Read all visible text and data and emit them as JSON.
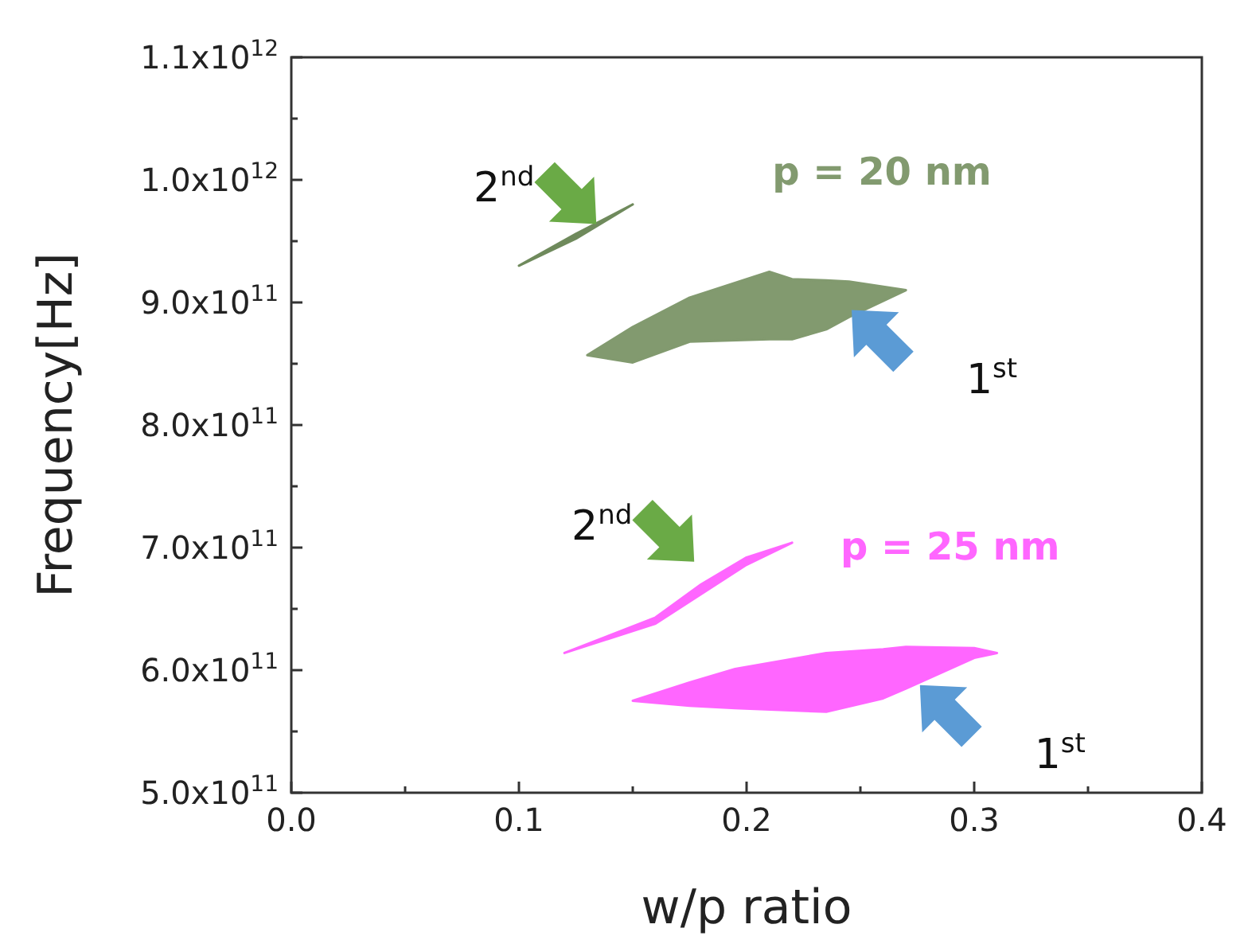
{
  "chart_data": {
    "type": "area",
    "xlabel": "w/p ratio",
    "ylabel": "Frequency[Hz]",
    "xlim": [
      0,
      0.4
    ],
    "ylim": [
      500000000000.0,
      1100000000000.0
    ],
    "xticks": [
      {
        "value": 0,
        "label": "0.0"
      },
      {
        "value": 0.05,
        "label": null
      },
      {
        "value": 0.1,
        "label": "0.1"
      },
      {
        "value": 0.15,
        "label": null
      },
      {
        "value": 0.2,
        "label": "0.2"
      },
      {
        "value": 0.25,
        "label": null
      },
      {
        "value": 0.3,
        "label": "0.3"
      },
      {
        "value": 0.35,
        "label": null
      },
      {
        "value": 0.4,
        "label": "0.4"
      }
    ],
    "yticks": [
      {
        "value": 500000000000.0,
        "label": "5.0x10$^{11}$"
      },
      {
        "value": 550000000000.0,
        "label": null
      },
      {
        "value": 600000000000.0,
        "label": "6.0x10$^{11}$"
      },
      {
        "value": 650000000000.0,
        "label": null
      },
      {
        "value": 700000000000.0,
        "label": "7.0x10$^{11}$"
      },
      {
        "value": 750000000000.0,
        "label": null
      },
      {
        "value": 800000000000.0,
        "label": "8.0x10$^{11}$"
      },
      {
        "value": 850000000000.0,
        "label": null
      },
      {
        "value": 900000000000.0,
        "label": "9.0x10$^{11}$"
      },
      {
        "value": 950000000000.0,
        "label": null
      },
      {
        "value": 1000000000000.0,
        "label": "1.0x10$^{12}$"
      },
      {
        "value": 1050000000000.0,
        "label": null
      },
      {
        "value": 1100000000000.0,
        "label": "1.1x10$^{12}$"
      }
    ],
    "series": [
      {
        "name": "p = 20 nm",
        "color": "#829a6f",
        "x": [
          0.13,
          0.15,
          0.175,
          0.21,
          0.22,
          0.235,
          0.245,
          0.27,
          0.245,
          0.235,
          0.22,
          0.21,
          0.175,
          0.15
        ],
        "values": [
          857000000000.0,
          880000000000.0,
          904000000000.0,
          925000000000.0,
          919000000000.0,
          918000000000.0,
          917000000000.0,
          910000000000.0,
          888000000000.0,
          878000000000.0,
          870000000000.0,
          870000000000.0,
          868000000000.0,
          851000000000.0
        ]
      },
      {
        "color": "#6f8a5c",
        "x": [
          0.1,
          0.125,
          0.15,
          0.125
        ],
        "values": [
          930000000000.0,
          956000000000.0,
          980000000000.0,
          952000000000.0
        ]
      },
      {
        "name": "p = 25 nm",
        "color": "#ff66ff",
        "x": [
          0.15,
          0.175,
          0.195,
          0.235,
          0.26,
          0.27,
          0.3,
          0.31,
          0.3,
          0.27,
          0.26,
          0.235,
          0.195,
          0.175
        ],
        "values": [
          575000000000.0,
          590000000000.0,
          601000000000.0,
          614000000000.0,
          617000000000.0,
          619000000000.0,
          618000000000.0,
          614000000000.0,
          610000000000.0,
          585000000000.0,
          577000000000.0,
          566000000000.0,
          569000000000.0,
          571000000000.0
        ]
      },
      {
        "color": "#ff66ff",
        "x": [
          0.12,
          0.16,
          0.18,
          0.2,
          0.22,
          0.2,
          0.18,
          0.16
        ],
        "values": [
          614000000000.0,
          643000000000.0,
          670000000000.0,
          692000000000.0,
          704000000000.0,
          686000000000.0,
          662000000000.0,
          638000000000.0
        ]
      }
    ],
    "annotations": [
      "1$^{st}$",
      {
        "text": "2$^{nd}$",
        "x": 0.134,
        "y": 964000000000.0
      },
      "1$^{st}$",
      "2$^{nd}$"
    ]
  }
}
